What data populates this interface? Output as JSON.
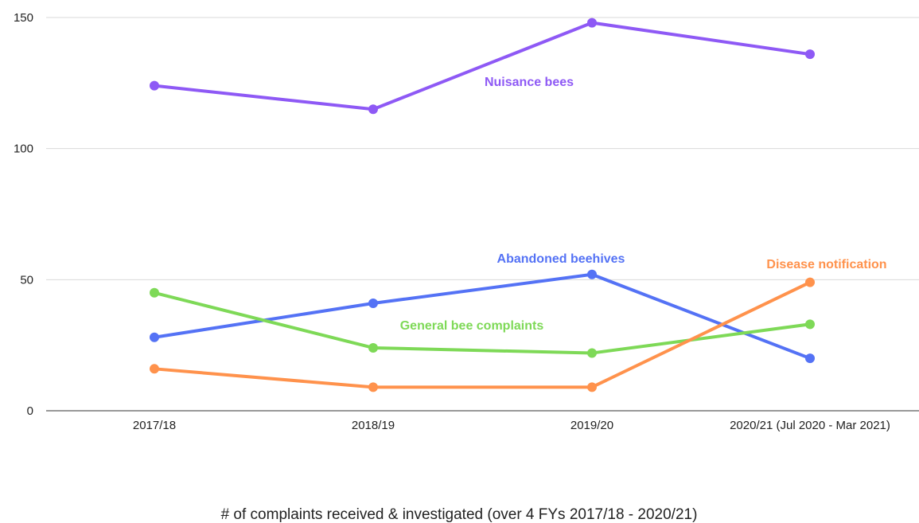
{
  "chart_data": {
    "type": "line",
    "title": "",
    "xlabel": "# of complaints received & investigated (over 4 FYs 2017/18 - 2020/21)",
    "ylabel": "",
    "categories": [
      "2017/18",
      "2018/19",
      "2019/20",
      "2020/21 (Jul 2020 - Mar 2021)"
    ],
    "ylim": [
      0,
      150
    ],
    "yticks": [
      0,
      50,
      100,
      150
    ],
    "grid": true,
    "legend": "none (direct labels)",
    "series": [
      {
        "name": "Nuisance bees",
        "color": "#8e59f5",
        "values": [
          124,
          115,
          148,
          136
        ]
      },
      {
        "name": "Abandoned beehives",
        "color": "#5472f5",
        "values": [
          28,
          41,
          52,
          20
        ]
      },
      {
        "name": "General bee complaints",
        "color": "#7ed957",
        "values": [
          45,
          24,
          22,
          33
        ]
      },
      {
        "name": "Disease notification",
        "color": "#ff924c",
        "values": [
          16,
          9,
          9,
          49
        ]
      }
    ]
  }
}
